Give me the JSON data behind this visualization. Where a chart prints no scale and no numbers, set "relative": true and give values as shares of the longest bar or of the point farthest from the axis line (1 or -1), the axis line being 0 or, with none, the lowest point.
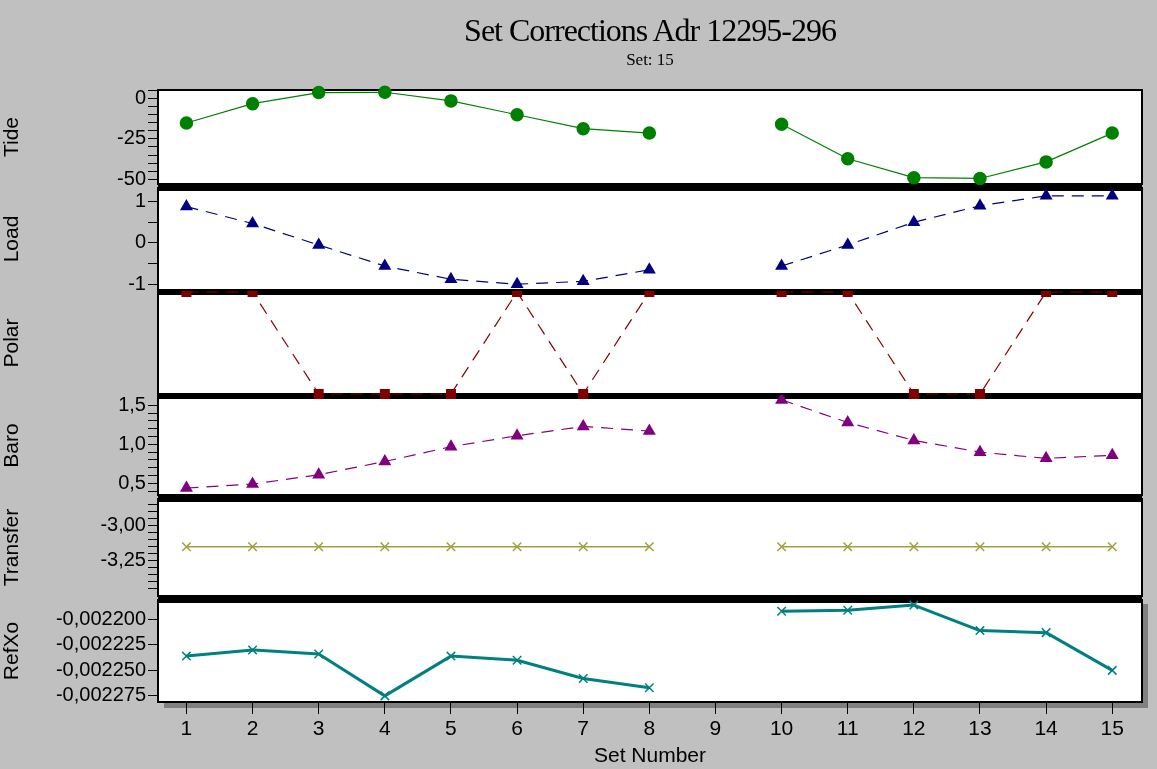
{
  "chart_data": [
    {
      "type": "line",
      "title": "Set Corrections Adr 12295-296",
      "subtitle": "Set: 15",
      "ylabel": "Tide",
      "x": [
        1,
        2,
        3,
        4,
        5,
        6,
        7,
        8,
        9,
        10,
        11,
        12,
        13,
        14,
        15
      ],
      "values": [
        -15.3,
        -3.4,
        3.4,
        3.6,
        -1.7,
        -10.2,
        -18.8,
        -21.5,
        null,
        -16.1,
        -37.3,
        -48.9,
        -49.4,
        -39.2,
        -21.5
      ],
      "color": "#008000",
      "marker": "circle",
      "line_style": "solid",
      "xlim": [
        0.57,
        15.45
      ],
      "ylim": [
        -52.8,
        5
      ],
      "yticks": [
        {
          "value": 5,
          "label": null
        },
        {
          "value": 0,
          "label": "0"
        },
        {
          "value": -5,
          "label": null
        },
        {
          "value": -10,
          "label": null
        },
        {
          "value": -15,
          "label": null
        },
        {
          "value": -20,
          "label": null
        },
        {
          "value": -25,
          "label": "-25"
        },
        {
          "value": -30,
          "label": null
        },
        {
          "value": -35,
          "label": null
        },
        {
          "value": -40,
          "label": null
        },
        {
          "value": -45,
          "label": null
        },
        {
          "value": -50,
          "label": "-50"
        }
      ],
      "grid": false,
      "tick_labels": "y"
    },
    {
      "type": "line",
      "ylabel": "Load",
      "x": [
        1,
        2,
        3,
        4,
        5,
        6,
        7,
        8,
        9,
        10,
        11,
        12,
        13,
        14,
        15
      ],
      "values": [
        0.88,
        0.47,
        -0.05,
        -0.56,
        -0.88,
        -1.0,
        -0.93,
        -0.65,
        null,
        -0.56,
        -0.05,
        0.5,
        0.9,
        1.14,
        1.14
      ],
      "color": "#000080",
      "marker": "triangle",
      "line_style": "dashed",
      "xlim": [
        0.57,
        15.45
      ],
      "ylim": [
        -1.14,
        1.33
      ],
      "yticks": [
        {
          "value": 1,
          "label": "1"
        },
        {
          "value": 0.5,
          "label": null
        },
        {
          "value": 0,
          "label": "0"
        },
        {
          "value": -0.5,
          "label": null
        },
        {
          "value": -1,
          "label": "-1"
        }
      ],
      "grid": false,
      "tick_labels": "y"
    },
    {
      "type": "line",
      "ylabel": "Polar",
      "relative": true,
      "x": [
        1,
        2,
        3,
        4,
        5,
        6,
        7,
        8,
        9,
        10,
        11,
        12,
        13,
        14,
        15
      ],
      "values": [
        1,
        1,
        0,
        0,
        0,
        1,
        0,
        1,
        null,
        1,
        1,
        0,
        0,
        1,
        1
      ],
      "color": "#800000",
      "marker": "square",
      "line_style": "dashed",
      "xlim": [
        0.57,
        15.45
      ],
      "grid": false,
      "tick_labels": "y"
    },
    {
      "type": "line",
      "ylabel": "Baro",
      "x": [
        1,
        2,
        3,
        4,
        5,
        6,
        7,
        8,
        9,
        10,
        11,
        12,
        13,
        14,
        15
      ],
      "values": [
        0.44,
        0.49,
        0.61,
        0.78,
        0.97,
        1.11,
        1.23,
        1.17,
        null,
        1.57,
        1.28,
        1.05,
        0.9,
        0.82,
        0.86
      ],
      "color": "#800080",
      "marker": "triangle",
      "line_style": "dashed",
      "xlim": [
        0.57,
        15.45
      ],
      "ylim": [
        0.35,
        1.62
      ],
      "yticks": [
        {
          "value": 1.5,
          "label": "1,5"
        },
        {
          "value": 1.4,
          "label": null
        },
        {
          "value": 1.3,
          "label": null
        },
        {
          "value": 1.2,
          "label": null
        },
        {
          "value": 1.1,
          "label": null
        },
        {
          "value": 1.0,
          "label": "1,0"
        },
        {
          "value": 0.9,
          "label": null
        },
        {
          "value": 0.8,
          "label": null
        },
        {
          "value": 0.7,
          "label": null
        },
        {
          "value": 0.6,
          "label": null
        },
        {
          "value": 0.5,
          "label": "0,5"
        },
        {
          "value": 0.4,
          "label": null
        }
      ],
      "grid": false,
      "tick_labels": "y"
    },
    {
      "type": "line",
      "ylabel": "Transfer",
      "x": [
        1,
        2,
        3,
        4,
        5,
        6,
        7,
        8,
        9,
        10,
        11,
        12,
        13,
        14,
        15
      ],
      "values": [
        -3.15,
        -3.15,
        -3.15,
        -3.15,
        -3.15,
        -3.15,
        -3.15,
        -3.15,
        null,
        -3.15,
        -3.15,
        -3.15,
        -3.15,
        -3.15,
        -3.15
      ],
      "color": "#a0a040",
      "marker": "cross",
      "line_style": "solid",
      "xlim": [
        0.57,
        15.45
      ],
      "ylim": [
        -3.5,
        -2.81
      ],
      "yticks": [
        {
          "value": -2.85,
          "label": null
        },
        {
          "value": -2.9,
          "label": null
        },
        {
          "value": -2.95,
          "label": null
        },
        {
          "value": -3.0,
          "label": "-3,00"
        },
        {
          "value": -3.05,
          "label": null
        },
        {
          "value": -3.1,
          "label": null
        },
        {
          "value": -3.15,
          "label": null
        },
        {
          "value": -3.2,
          "label": null
        },
        {
          "value": -3.25,
          "label": "-3,25"
        },
        {
          "value": -3.3,
          "label": null
        },
        {
          "value": -3.35,
          "label": null
        },
        {
          "value": -3.4,
          "label": null
        },
        {
          "value": -3.45,
          "label": null
        }
      ],
      "grid": false,
      "tick_labels": "y"
    },
    {
      "type": "line",
      "ylabel": "RefXo",
      "xlabel": "Set Number",
      "x": [
        1,
        2,
        3,
        4,
        5,
        6,
        7,
        8,
        9,
        10,
        11,
        12,
        13,
        14,
        15
      ],
      "values": [
        -0.002236,
        -0.00223,
        -0.002234,
        -0.002275,
        -0.002236,
        -0.00224,
        -0.002258,
        -0.002267,
        null,
        -0.002192,
        -0.002191,
        -0.002186,
        -0.002211,
        -0.002213,
        -0.00225
      ],
      "color": "#008080",
      "marker": "cross",
      "line_style": "solid",
      "xlim": [
        0.57,
        15.45
      ],
      "xticks": [
        1,
        2,
        3,
        4,
        5,
        6,
        7,
        8,
        9,
        10,
        11,
        12,
        13,
        14,
        15
      ],
      "ylim": [
        -0.002281,
        -0.002181
      ],
      "yticks": [
        {
          "value": -0.0022,
          "label": "-0,002200"
        },
        {
          "value": -0.002225,
          "label": "-0,002225"
        },
        {
          "value": -0.00225,
          "label": "-0,002250"
        },
        {
          "value": -0.002275,
          "label": "-0,002275"
        }
      ],
      "grid": false
    }
  ]
}
